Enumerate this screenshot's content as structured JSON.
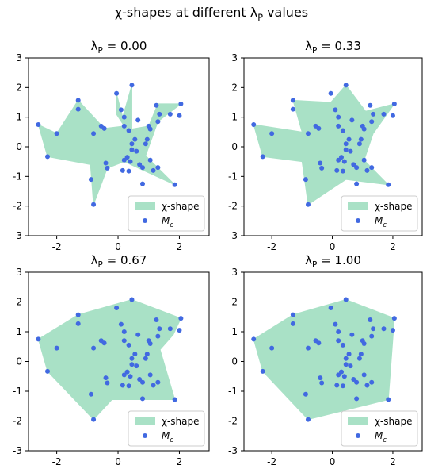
{
  "title": "χ-shapes at different λ_P values",
  "chart_data": [
    {
      "type": "scatter",
      "title": "λ_P = 0.00",
      "xlim": [
        -2.92,
        2.97
      ],
      "ylim": [
        -3,
        3
      ],
      "xticks": [
        -2,
        0,
        2
      ],
      "yticks": [
        -3,
        -2,
        -1,
        0,
        1,
        2,
        3
      ],
      "legend": "lower right",
      "shape": {
        "name": "χ-shape",
        "color": "#a9e1c6",
        "x": [
          -2.6,
          -2.3,
          -0.9,
          -0.8,
          -0.35,
          0.2,
          1.85,
          0.9,
          1.3,
          2.05,
          1.3,
          1.0,
          0.45,
          0.45,
          0.15,
          -0.05,
          -0.05,
          0.2,
          -0.45,
          -1.3,
          -2.0
        ],
        "y": [
          0.75,
          -0.33,
          -0.6,
          -1.95,
          -0.72,
          -0.5,
          -1.28,
          -0.3,
          0.85,
          1.45,
          1.45,
          0.7,
          0.6,
          2.08,
          1.0,
          1.8,
          1.1,
          0.7,
          0.62,
          1.57,
          0.45
        ]
      },
      "series": [
        {
          "name": "M_c",
          "color": "#4169e1",
          "x": [
            -2.6,
            -2.3,
            -2.0,
            -1.3,
            -1.3,
            -0.8,
            -0.88,
            -0.8,
            -0.55,
            -0.45,
            -0.4,
            -0.35,
            -0.05,
            0.1,
            0.2,
            0.45,
            0.2,
            0.35,
            0.3,
            0.4,
            0.15,
            0.35,
            0.45,
            0.45,
            0.55,
            0.6,
            0.7,
            0.8,
            0.8,
            0.9,
            0.95,
            1.0,
            1.05,
            1.15,
            1.25,
            1.3,
            1.3,
            1.35,
            1.7,
            1.85,
            2.05,
            2.0,
            1.05,
            0.2,
            0.65
          ],
          "y": [
            0.75,
            -0.33,
            0.45,
            1.57,
            1.27,
            0.45,
            -1.1,
            -1.95,
            0.7,
            0.62,
            -0.55,
            -0.72,
            1.8,
            1.25,
            1.0,
            2.08,
            0.7,
            0.55,
            -0.35,
            -0.5,
            -0.8,
            -0.82,
            -0.1,
            0.1,
            0.25,
            -0.15,
            -0.6,
            -1.25,
            -0.7,
            0.1,
            0.25,
            0.7,
            0.6,
            -0.8,
            1.4,
            -0.7,
            0.85,
            1.1,
            1.1,
            -1.28,
            1.45,
            1.05,
            -0.45,
            -0.45,
            0.9
          ]
        }
      ]
    },
    {
      "type": "scatter",
      "title": "λ_P = 0.33",
      "xlim": [
        -2.92,
        2.97
      ],
      "ylim": [
        -3,
        3
      ],
      "xticks": [
        -2,
        0,
        2
      ],
      "yticks": [
        -3,
        -2,
        -1,
        0,
        1,
        2,
        3
      ],
      "legend": "lower right",
      "shape": {
        "name": "χ-shape",
        "color": "#a9e1c6",
        "x": [
          -2.6,
          -2.3,
          -1.0,
          -0.8,
          0.45,
          1.85,
          1.05,
          1.35,
          2.05,
          1.1,
          0.45,
          -0.05,
          -1.3,
          -1.0
        ],
        "y": [
          0.75,
          -0.33,
          -0.5,
          -1.95,
          -1.1,
          -1.28,
          -0.45,
          0.45,
          1.45,
          1.2,
          2.08,
          1.5,
          1.57,
          0.5
        ]
      },
      "series": [
        {
          "name": "M_c",
          "color": "#4169e1",
          "x": [
            -2.6,
            -2.3,
            -2.0,
            -1.3,
            -1.3,
            -0.8,
            -0.88,
            -0.8,
            -0.55,
            -0.45,
            -0.4,
            -0.35,
            -0.05,
            0.1,
            0.2,
            0.45,
            0.2,
            0.35,
            0.3,
            0.4,
            0.15,
            0.35,
            0.45,
            0.45,
            0.55,
            0.6,
            0.7,
            0.8,
            0.8,
            0.9,
            0.95,
            1.0,
            1.05,
            1.15,
            1.25,
            1.3,
            1.3,
            1.35,
            1.7,
            1.85,
            2.05,
            2.0,
            1.05,
            0.2,
            0.65
          ],
          "y": [
            0.75,
            -0.33,
            0.45,
            1.57,
            1.27,
            0.45,
            -1.1,
            -1.95,
            0.7,
            0.62,
            -0.55,
            -0.72,
            1.8,
            1.25,
            1.0,
            2.08,
            0.7,
            0.55,
            -0.35,
            -0.5,
            -0.8,
            -0.82,
            -0.1,
            0.1,
            0.25,
            -0.15,
            -0.6,
            -1.25,
            -0.7,
            0.1,
            0.25,
            0.7,
            0.6,
            -0.8,
            1.4,
            -0.7,
            0.85,
            1.1,
            1.1,
            -1.28,
            1.45,
            1.05,
            -0.45,
            -0.45,
            0.9
          ]
        }
      ]
    },
    {
      "type": "scatter",
      "title": "λ_P = 0.67",
      "xlim": [
        -2.92,
        2.97
      ],
      "ylim": [
        -3,
        3
      ],
      "xticks": [
        -2,
        0,
        2
      ],
      "yticks": [
        -3,
        -2,
        -1,
        0,
        1,
        2,
        3
      ],
      "legend": "lower right",
      "shape": {
        "name": "χ-shape",
        "color": "#a9e1c6",
        "x": [
          -2.6,
          -1.3,
          0.45,
          2.05,
          1.8,
          1.37,
          1.85,
          -0.2,
          -0.8,
          -2.3
        ],
        "y": [
          0.75,
          1.57,
          2.08,
          1.45,
          0.9,
          0.4,
          -1.28,
          -1.28,
          -1.95,
          -0.33
        ]
      },
      "series": [
        {
          "name": "M_c",
          "color": "#4169e1",
          "x": [
            -2.6,
            -2.3,
            -2.0,
            -1.3,
            -1.3,
            -0.8,
            -0.88,
            -0.8,
            -0.55,
            -0.45,
            -0.4,
            -0.35,
            -0.05,
            0.1,
            0.2,
            0.45,
            0.2,
            0.35,
            0.3,
            0.4,
            0.15,
            0.35,
            0.45,
            0.45,
            0.55,
            0.6,
            0.7,
            0.8,
            0.8,
            0.9,
            0.95,
            1.0,
            1.05,
            1.15,
            1.25,
            1.3,
            1.3,
            1.35,
            1.7,
            1.85,
            2.05,
            2.0,
            1.05,
            0.2,
            0.65
          ],
          "y": [
            0.75,
            -0.33,
            0.45,
            1.57,
            1.27,
            0.45,
            -1.1,
            -1.95,
            0.7,
            0.62,
            -0.55,
            -0.72,
            1.8,
            1.25,
            1.0,
            2.08,
            0.7,
            0.55,
            -0.35,
            -0.5,
            -0.8,
            -0.82,
            -0.1,
            0.1,
            0.25,
            -0.15,
            -0.6,
            -1.25,
            -0.7,
            0.1,
            0.25,
            0.7,
            0.6,
            -0.8,
            1.4,
            -0.7,
            0.85,
            1.1,
            1.1,
            -1.28,
            1.45,
            1.05,
            -0.45,
            -0.45,
            0.9
          ]
        }
      ]
    },
    {
      "type": "scatter",
      "title": "λ_P = 1.00",
      "xlim": [
        -2.92,
        2.97
      ],
      "ylim": [
        -3,
        3
      ],
      "xticks": [
        -2,
        0,
        2
      ],
      "yticks": [
        -3,
        -2,
        -1,
        0,
        1,
        2,
        3
      ],
      "legend": "lower right",
      "shape": {
        "name": "χ-shape",
        "color": "#a9e1c6",
        "x": [
          -2.6,
          -1.3,
          0.45,
          2.05,
          1.85,
          -0.8,
          -2.3
        ],
        "y": [
          0.75,
          1.57,
          2.08,
          1.45,
          -1.28,
          -1.95,
          -0.33
        ]
      },
      "series": [
        {
          "name": "M_c",
          "color": "#4169e1",
          "x": [
            -2.6,
            -2.3,
            -2.0,
            -1.3,
            -1.3,
            -0.8,
            -0.88,
            -0.8,
            -0.55,
            -0.45,
            -0.4,
            -0.35,
            -0.05,
            0.1,
            0.2,
            0.45,
            0.2,
            0.35,
            0.3,
            0.4,
            0.15,
            0.35,
            0.45,
            0.45,
            0.55,
            0.6,
            0.7,
            0.8,
            0.8,
            0.9,
            0.95,
            1.0,
            1.05,
            1.15,
            1.25,
            1.3,
            1.3,
            1.35,
            1.7,
            1.85,
            2.05,
            2.0,
            1.05,
            0.2,
            0.65
          ],
          "y": [
            0.75,
            -0.33,
            0.45,
            1.57,
            1.27,
            0.45,
            -1.1,
            -1.95,
            0.7,
            0.62,
            -0.55,
            -0.72,
            1.8,
            1.25,
            1.0,
            2.08,
            0.7,
            0.55,
            -0.35,
            -0.5,
            -0.8,
            -0.82,
            -0.1,
            0.1,
            0.25,
            -0.15,
            -0.6,
            -1.25,
            -0.7,
            0.1,
            0.25,
            0.7,
            0.6,
            -0.8,
            1.4,
            -0.7,
            0.85,
            1.1,
            1.1,
            -1.28,
            1.45,
            1.05,
            -0.45,
            -0.45,
            0.9
          ]
        }
      ]
    }
  ]
}
